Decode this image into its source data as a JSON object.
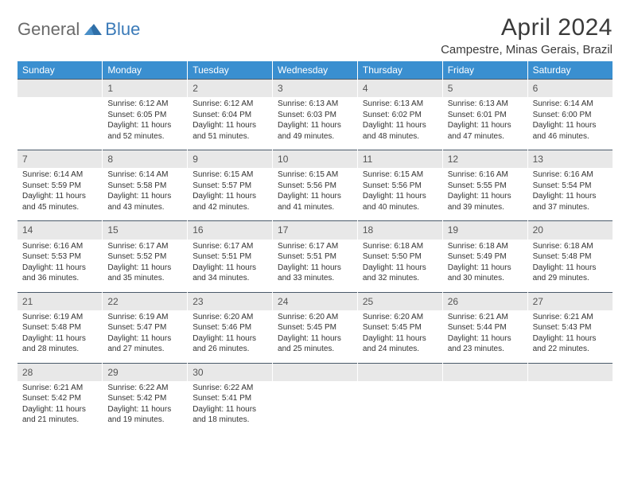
{
  "brand": {
    "general": "General",
    "blue": "Blue"
  },
  "title": "April 2024",
  "location": "Campestre, Minas Gerais, Brazil",
  "weekdays": [
    "Sunday",
    "Monday",
    "Tuesday",
    "Wednesday",
    "Thursday",
    "Friday",
    "Saturday"
  ],
  "colors": {
    "header_bg": "#3a8fd0",
    "header_fg": "#ffffff",
    "daynum_bg": "#e8e8e8",
    "daynum_border": "#4a5a6a",
    "text": "#333333",
    "logo_blue": "#3a7ab8",
    "logo_gray": "#6a6a6a"
  },
  "weeks": [
    [
      {
        "day": "",
        "lines": [
          "",
          "",
          "",
          ""
        ]
      },
      {
        "day": "1",
        "lines": [
          "Sunrise: 6:12 AM",
          "Sunset: 6:05 PM",
          "Daylight: 11 hours",
          "and 52 minutes."
        ]
      },
      {
        "day": "2",
        "lines": [
          "Sunrise: 6:12 AM",
          "Sunset: 6:04 PM",
          "Daylight: 11 hours",
          "and 51 minutes."
        ]
      },
      {
        "day": "3",
        "lines": [
          "Sunrise: 6:13 AM",
          "Sunset: 6:03 PM",
          "Daylight: 11 hours",
          "and 49 minutes."
        ]
      },
      {
        "day": "4",
        "lines": [
          "Sunrise: 6:13 AM",
          "Sunset: 6:02 PM",
          "Daylight: 11 hours",
          "and 48 minutes."
        ]
      },
      {
        "day": "5",
        "lines": [
          "Sunrise: 6:13 AM",
          "Sunset: 6:01 PM",
          "Daylight: 11 hours",
          "and 47 minutes."
        ]
      },
      {
        "day": "6",
        "lines": [
          "Sunrise: 6:14 AM",
          "Sunset: 6:00 PM",
          "Daylight: 11 hours",
          "and 46 minutes."
        ]
      }
    ],
    [
      {
        "day": "7",
        "lines": [
          "Sunrise: 6:14 AM",
          "Sunset: 5:59 PM",
          "Daylight: 11 hours",
          "and 45 minutes."
        ]
      },
      {
        "day": "8",
        "lines": [
          "Sunrise: 6:14 AM",
          "Sunset: 5:58 PM",
          "Daylight: 11 hours",
          "and 43 minutes."
        ]
      },
      {
        "day": "9",
        "lines": [
          "Sunrise: 6:15 AM",
          "Sunset: 5:57 PM",
          "Daylight: 11 hours",
          "and 42 minutes."
        ]
      },
      {
        "day": "10",
        "lines": [
          "Sunrise: 6:15 AM",
          "Sunset: 5:56 PM",
          "Daylight: 11 hours",
          "and 41 minutes."
        ]
      },
      {
        "day": "11",
        "lines": [
          "Sunrise: 6:15 AM",
          "Sunset: 5:56 PM",
          "Daylight: 11 hours",
          "and 40 minutes."
        ]
      },
      {
        "day": "12",
        "lines": [
          "Sunrise: 6:16 AM",
          "Sunset: 5:55 PM",
          "Daylight: 11 hours",
          "and 39 minutes."
        ]
      },
      {
        "day": "13",
        "lines": [
          "Sunrise: 6:16 AM",
          "Sunset: 5:54 PM",
          "Daylight: 11 hours",
          "and 37 minutes."
        ]
      }
    ],
    [
      {
        "day": "14",
        "lines": [
          "Sunrise: 6:16 AM",
          "Sunset: 5:53 PM",
          "Daylight: 11 hours",
          "and 36 minutes."
        ]
      },
      {
        "day": "15",
        "lines": [
          "Sunrise: 6:17 AM",
          "Sunset: 5:52 PM",
          "Daylight: 11 hours",
          "and 35 minutes."
        ]
      },
      {
        "day": "16",
        "lines": [
          "Sunrise: 6:17 AM",
          "Sunset: 5:51 PM",
          "Daylight: 11 hours",
          "and 34 minutes."
        ]
      },
      {
        "day": "17",
        "lines": [
          "Sunrise: 6:17 AM",
          "Sunset: 5:51 PM",
          "Daylight: 11 hours",
          "and 33 minutes."
        ]
      },
      {
        "day": "18",
        "lines": [
          "Sunrise: 6:18 AM",
          "Sunset: 5:50 PM",
          "Daylight: 11 hours",
          "and 32 minutes."
        ]
      },
      {
        "day": "19",
        "lines": [
          "Sunrise: 6:18 AM",
          "Sunset: 5:49 PM",
          "Daylight: 11 hours",
          "and 30 minutes."
        ]
      },
      {
        "day": "20",
        "lines": [
          "Sunrise: 6:18 AM",
          "Sunset: 5:48 PM",
          "Daylight: 11 hours",
          "and 29 minutes."
        ]
      }
    ],
    [
      {
        "day": "21",
        "lines": [
          "Sunrise: 6:19 AM",
          "Sunset: 5:48 PM",
          "Daylight: 11 hours",
          "and 28 minutes."
        ]
      },
      {
        "day": "22",
        "lines": [
          "Sunrise: 6:19 AM",
          "Sunset: 5:47 PM",
          "Daylight: 11 hours",
          "and 27 minutes."
        ]
      },
      {
        "day": "23",
        "lines": [
          "Sunrise: 6:20 AM",
          "Sunset: 5:46 PM",
          "Daylight: 11 hours",
          "and 26 minutes."
        ]
      },
      {
        "day": "24",
        "lines": [
          "Sunrise: 6:20 AM",
          "Sunset: 5:45 PM",
          "Daylight: 11 hours",
          "and 25 minutes."
        ]
      },
      {
        "day": "25",
        "lines": [
          "Sunrise: 6:20 AM",
          "Sunset: 5:45 PM",
          "Daylight: 11 hours",
          "and 24 minutes."
        ]
      },
      {
        "day": "26",
        "lines": [
          "Sunrise: 6:21 AM",
          "Sunset: 5:44 PM",
          "Daylight: 11 hours",
          "and 23 minutes."
        ]
      },
      {
        "day": "27",
        "lines": [
          "Sunrise: 6:21 AM",
          "Sunset: 5:43 PM",
          "Daylight: 11 hours",
          "and 22 minutes."
        ]
      }
    ],
    [
      {
        "day": "28",
        "lines": [
          "Sunrise: 6:21 AM",
          "Sunset: 5:42 PM",
          "Daylight: 11 hours",
          "and 21 minutes."
        ]
      },
      {
        "day": "29",
        "lines": [
          "Sunrise: 6:22 AM",
          "Sunset: 5:42 PM",
          "Daylight: 11 hours",
          "and 19 minutes."
        ]
      },
      {
        "day": "30",
        "lines": [
          "Sunrise: 6:22 AM",
          "Sunset: 5:41 PM",
          "Daylight: 11 hours",
          "and 18 minutes."
        ]
      },
      {
        "day": "",
        "lines": [
          "",
          "",
          "",
          ""
        ]
      },
      {
        "day": "",
        "lines": [
          "",
          "",
          "",
          ""
        ]
      },
      {
        "day": "",
        "lines": [
          "",
          "",
          "",
          ""
        ]
      },
      {
        "day": "",
        "lines": [
          "",
          "",
          "",
          ""
        ]
      }
    ]
  ]
}
